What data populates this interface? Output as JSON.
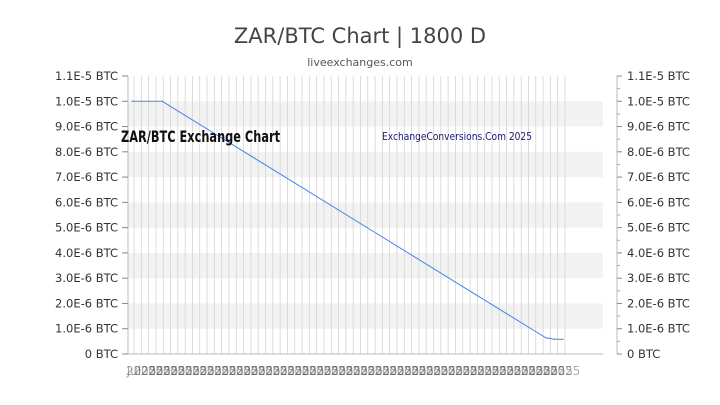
{
  "page": {
    "title": "ZAR/BTC Chart | 1800 D",
    "subtitle": "liveexchanges.com"
  },
  "chart_data": {
    "type": "line",
    "title": "ZAR/BTC Chart | 1800 D",
    "subtitle": "liveexchanges.com",
    "xlabel": "",
    "ylabel": "",
    "unit": "BTC",
    "y_ticks": [
      "0 BTC",
      "1.0E-6 BTC",
      "2.0E-6 BTC",
      "3.0E-6 BTC",
      "4.0E-6 BTC",
      "5.0E-6 BTC",
      "6.0E-6 BTC",
      "7.0E-6 BTC",
      "8.0E-6 BTC",
      "9.0E-6 BTC",
      "1.0E-5 BTC",
      "1.1E-5 BTC"
    ],
    "ylim": [
      0,
      1.1e-05
    ],
    "x_tick_labels_visible": [
      "Jul",
      "2025"
    ],
    "x_tick_count": 60,
    "grid": "horizontal bands and vertical lines",
    "axes_labels_both_sides": true,
    "annotations": {
      "left_watermark": "ZAR/BTC Exchange Chart",
      "right_watermark": "ExchangeConversions.Com 2025"
    },
    "series": [
      {
        "color": "#4a86e8",
        "x": [
          0,
          7,
          96,
          98,
          100
        ],
        "y": [
          1e-05,
          1e-05,
          6.4e-07,
          5.8e-07,
          5.8e-07
        ]
      }
    ]
  },
  "colors": {
    "line": "#4a86e8",
    "band": "#f2f2f2",
    "vgrid": "#d4d4d4",
    "watermark_left": "#111111",
    "watermark_right": "#1a1a6e"
  }
}
